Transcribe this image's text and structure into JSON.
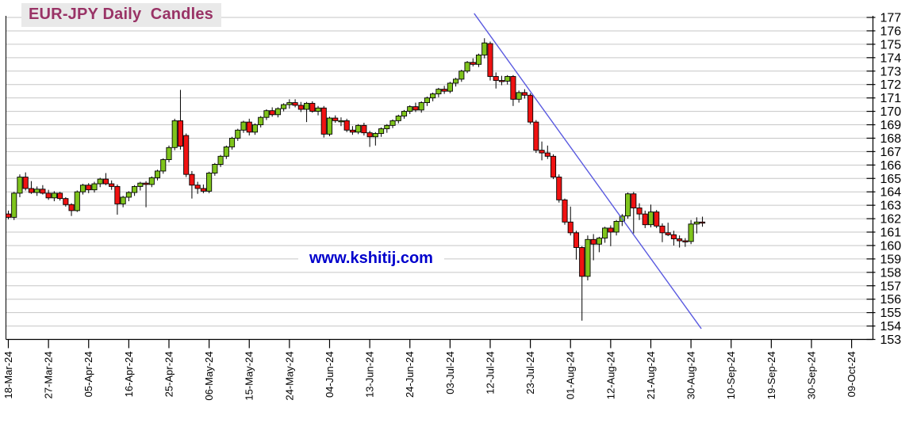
{
  "title": "EUR-JPY Daily  Candles",
  "watermark": "www.kshitij.com",
  "colors": {
    "up_candle": "#7fc41c",
    "down_candle": "#f01212",
    "candle_border": "#000000",
    "wick": "#000000",
    "gridline": "#c6c6c6",
    "axis": "#000000",
    "trendline": "#5a5ae0",
    "title_text": "#993366",
    "title_bg": "#e9e9e9",
    "watermark_text": "#0000cc"
  },
  "chart_data": {
    "type": "candlestick",
    "title": "EUR-JPY Daily Candles",
    "ylim": [
      153,
      177
    ],
    "y_tick_step": 1,
    "grid": "horizontal",
    "legend": "none",
    "x_ticks_every_n_candles": 7,
    "x_tick_labels": [
      "18-Mar-24",
      "27-Mar-24",
      "05-Apr-24",
      "16-Apr-24",
      "25-Apr-24",
      "06-May-24",
      "15-May-24",
      "24-May-24",
      "04-Jun-24",
      "13-Jun-24",
      "24-Jun-24",
      "03-Jul-24",
      "12-Jul-24",
      "23-Jul-24",
      "01-Aug-24",
      "12-Aug-24",
      "21-Aug-24",
      "30-Aug-24",
      "10-Sep-24",
      "19-Sep-24",
      "30-Sep-24",
      "09-Oct-24"
    ],
    "trendline": {
      "from": {
        "index": 81.2,
        "price": 177.3
      },
      "to": {
        "index": 120.8,
        "price": 153.8
      }
    },
    "candles": [
      [
        "18-Mar-24",
        162.35,
        162.6,
        161.95,
        162.1
      ],
      [
        "19-Mar-24",
        162.1,
        164.0,
        161.9,
        163.9
      ],
      [
        "20-Mar-24",
        163.9,
        165.3,
        163.6,
        165.1
      ],
      [
        "21-Mar-24",
        165.1,
        165.45,
        164.1,
        164.25
      ],
      [
        "22-Mar-24",
        164.25,
        164.8,
        163.85,
        163.95
      ],
      [
        "25-Mar-24",
        163.95,
        164.4,
        163.7,
        164.2
      ],
      [
        "26-Mar-24",
        164.2,
        164.5,
        163.8,
        163.9
      ],
      [
        "27-Mar-24",
        163.9,
        164.15,
        163.4,
        163.55
      ],
      [
        "28-Mar-24",
        163.55,
        164.05,
        163.3,
        163.9
      ],
      [
        "29-Mar-24",
        163.9,
        164.0,
        163.35,
        163.5
      ],
      [
        "01-Apr-24",
        163.5,
        163.6,
        162.9,
        163.05
      ],
      [
        "02-Apr-24",
        163.05,
        163.15,
        162.2,
        162.6
      ],
      [
        "03-Apr-24",
        162.6,
        164.1,
        162.5,
        164.0
      ],
      [
        "04-Apr-24",
        164.0,
        164.6,
        163.8,
        164.5
      ],
      [
        "05-Apr-24",
        164.5,
        164.65,
        163.9,
        164.15
      ],
      [
        "08-Apr-24",
        164.15,
        164.75,
        163.95,
        164.6
      ],
      [
        "09-Apr-24",
        164.6,
        165.05,
        164.35,
        164.95
      ],
      [
        "10-Apr-24",
        164.95,
        165.4,
        164.5,
        164.6
      ],
      [
        "11-Apr-24",
        164.6,
        164.85,
        164.15,
        164.4
      ],
      [
        "12-Apr-24",
        164.4,
        164.55,
        162.3,
        163.1
      ],
      [
        "15-Apr-24",
        163.1,
        163.7,
        162.85,
        163.6
      ],
      [
        "16-Apr-24",
        163.6,
        164.05,
        163.3,
        163.95
      ],
      [
        "17-Apr-24",
        163.95,
        164.5,
        163.7,
        164.4
      ],
      [
        "18-Apr-24",
        164.4,
        164.75,
        164.1,
        164.65
      ],
      [
        "19-Apr-24",
        164.65,
        164.8,
        162.85,
        164.55
      ],
      [
        "22-Apr-24",
        164.55,
        165.15,
        164.35,
        165.05
      ],
      [
        "23-Apr-24",
        165.05,
        165.65,
        164.85,
        165.55
      ],
      [
        "24-Apr-24",
        165.55,
        166.5,
        165.35,
        166.4
      ],
      [
        "25-Apr-24",
        166.4,
        167.45,
        166.2,
        167.3
      ],
      [
        "26-Apr-24",
        167.3,
        169.45,
        167.1,
        169.3
      ],
      [
        "29-Apr-24",
        169.3,
        171.6,
        167.15,
        167.4
      ],
      [
        "30-Apr-24",
        168.2,
        168.35,
        165.1,
        165.3
      ],
      [
        "01-May-24",
        165.3,
        165.55,
        163.5,
        164.5
      ],
      [
        "02-May-24",
        164.5,
        164.75,
        163.85,
        164.25
      ],
      [
        "03-May-24",
        164.25,
        164.55,
        163.9,
        164.05
      ],
      [
        "06-May-24",
        164.05,
        165.5,
        163.9,
        165.4
      ],
      [
        "07-May-24",
        165.4,
        166.15,
        165.2,
        166.05
      ],
      [
        "08-May-24",
        166.05,
        166.75,
        165.85,
        166.65
      ],
      [
        "09-May-24",
        166.65,
        167.45,
        166.45,
        167.35
      ],
      [
        "10-May-24",
        167.35,
        168.1,
        167.15,
        168.0
      ],
      [
        "13-May-24",
        168.0,
        168.7,
        167.8,
        168.6
      ],
      [
        "14-May-24",
        168.6,
        169.3,
        168.4,
        169.2
      ],
      [
        "15-May-24",
        169.2,
        169.45,
        168.2,
        168.45
      ],
      [
        "16-May-24",
        168.45,
        169.1,
        168.25,
        169.0
      ],
      [
        "17-May-24",
        169.0,
        169.65,
        168.8,
        169.55
      ],
      [
        "20-May-24",
        169.55,
        170.15,
        169.35,
        170.05
      ],
      [
        "21-May-24",
        170.05,
        170.3,
        169.6,
        169.75
      ],
      [
        "22-May-24",
        169.75,
        170.3,
        169.55,
        170.2
      ],
      [
        "23-May-24",
        170.2,
        170.6,
        170.0,
        170.5
      ],
      [
        "24-May-24",
        170.5,
        170.9,
        170.2,
        170.65
      ],
      [
        "27-May-24",
        170.65,
        170.9,
        170.3,
        170.45
      ],
      [
        "28-May-24",
        170.45,
        170.7,
        169.95,
        170.15
      ],
      [
        "29-May-24",
        170.15,
        170.7,
        169.2,
        170.6
      ],
      [
        "30-May-24",
        170.6,
        170.75,
        169.9,
        170.0
      ],
      [
        "31-May-24",
        170.0,
        170.4,
        169.7,
        170.25
      ],
      [
        "03-Jun-24",
        170.25,
        170.4,
        168.05,
        168.3
      ],
      [
        "04-Jun-24",
        168.3,
        169.6,
        168.15,
        169.5
      ],
      [
        "05-Jun-24",
        169.5,
        169.7,
        169.15,
        169.3
      ],
      [
        "06-Jun-24",
        169.3,
        169.55,
        168.9,
        169.3
      ],
      [
        "07-Jun-24",
        169.3,
        169.45,
        168.45,
        168.6
      ],
      [
        "10-Jun-24",
        168.6,
        168.9,
        168.25,
        168.45
      ],
      [
        "11-Jun-24",
        168.45,
        169.05,
        168.3,
        168.95
      ],
      [
        "12-Jun-24",
        168.95,
        169.15,
        168.2,
        168.4
      ],
      [
        "13-Jun-24",
        168.4,
        168.55,
        167.35,
        168.1
      ],
      [
        "14-Jun-24",
        168.1,
        168.45,
        167.45,
        168.35
      ],
      [
        "17-Jun-24",
        168.35,
        168.8,
        168.1,
        168.7
      ],
      [
        "18-Jun-24",
        168.7,
        169.05,
        168.4,
        168.95
      ],
      [
        "19-Jun-24",
        168.95,
        169.4,
        168.75,
        169.3
      ],
      [
        "20-Jun-24",
        169.3,
        169.75,
        169.1,
        169.65
      ],
      [
        "21-Jun-24",
        169.65,
        170.1,
        169.45,
        170.0
      ],
      [
        "24-Jun-24",
        170.0,
        170.45,
        169.8,
        170.35
      ],
      [
        "25-Jun-24",
        170.35,
        170.65,
        169.95,
        170.1
      ],
      [
        "26-Jun-24",
        170.1,
        170.75,
        169.9,
        170.65
      ],
      [
        "27-Jun-24",
        170.65,
        171.1,
        170.4,
        171.0
      ],
      [
        "28-Jun-24",
        171.0,
        171.4,
        170.75,
        171.3
      ],
      [
        "01-Jul-24",
        171.3,
        171.75,
        171.05,
        171.65
      ],
      [
        "02-Jul-24",
        171.65,
        171.9,
        171.3,
        171.5
      ],
      [
        "03-Jul-24",
        171.5,
        172.2,
        171.35,
        172.1
      ],
      [
        "04-Jul-24",
        172.1,
        172.5,
        171.85,
        172.4
      ],
      [
        "05-Jul-24",
        172.4,
        173.1,
        172.2,
        173.0
      ],
      [
        "08-Jul-24",
        173.0,
        173.75,
        172.85,
        173.65
      ],
      [
        "09-Jul-24",
        173.65,
        173.95,
        173.35,
        173.5
      ],
      [
        "10-Jul-24",
        173.5,
        174.3,
        173.3,
        174.2
      ],
      [
        "11-Jul-24",
        174.2,
        175.45,
        173.95,
        175.1
      ],
      [
        "12-Jul-24",
        175.05,
        175.2,
        172.3,
        172.6
      ],
      [
        "15-Jul-24",
        172.6,
        172.9,
        171.7,
        172.3
      ],
      [
        "16-Jul-24",
        172.3,
        172.65,
        171.95,
        172.25
      ],
      [
        "17-Jul-24",
        172.25,
        172.7,
        172.0,
        172.6
      ],
      [
        "18-Jul-24",
        172.6,
        172.7,
        170.4,
        170.9
      ],
      [
        "19-Jul-24",
        170.9,
        171.55,
        170.65,
        171.4
      ],
      [
        "22-Jul-24",
        171.4,
        171.65,
        170.95,
        171.2
      ],
      [
        "23-Jul-24",
        171.2,
        171.35,
        169.05,
        169.2
      ],
      [
        "24-Jul-24",
        169.2,
        169.35,
        166.9,
        167.1
      ],
      [
        "25-Jul-24",
        167.1,
        167.75,
        166.35,
        166.9
      ],
      [
        "26-Jul-24",
        166.9,
        167.45,
        166.45,
        166.65
      ],
      [
        "29-Jul-24",
        166.65,
        166.8,
        164.95,
        165.1
      ],
      [
        "30-Jul-24",
        165.1,
        165.3,
        163.2,
        163.4
      ],
      [
        "31-Jul-24",
        163.4,
        163.5,
        161.55,
        161.75
      ],
      [
        "01-Aug-24",
        161.75,
        162.9,
        160.75,
        160.95
      ],
      [
        "02-Aug-24",
        160.95,
        161.1,
        158.95,
        159.85
      ],
      [
        "05-Aug-24",
        159.85,
        159.95,
        154.4,
        157.7
      ],
      [
        "06-Aug-24",
        157.7,
        160.75,
        157.4,
        160.45
      ],
      [
        "07-Aug-24",
        160.45,
        160.85,
        158.9,
        160.1
      ],
      [
        "08-Aug-24",
        160.1,
        160.65,
        159.5,
        160.55
      ],
      [
        "09-Aug-24",
        160.55,
        161.4,
        160.2,
        161.3
      ],
      [
        "12-Aug-24",
        161.3,
        161.5,
        159.95,
        161.0
      ],
      [
        "13-Aug-24",
        161.0,
        161.9,
        160.75,
        161.8
      ],
      [
        "14-Aug-24",
        161.8,
        162.35,
        161.45,
        162.2
      ],
      [
        "15-Aug-24",
        162.2,
        163.95,
        162.0,
        163.85
      ],
      [
        "16-Aug-24",
        163.85,
        164.0,
        160.9,
        162.8
      ],
      [
        "19-Aug-24",
        162.8,
        163.15,
        161.9,
        162.35
      ],
      [
        "20-Aug-24",
        162.35,
        162.6,
        161.3,
        161.55
      ],
      [
        "21-Aug-24",
        161.55,
        163.05,
        161.35,
        162.5
      ],
      [
        "22-Aug-24",
        162.5,
        162.65,
        161.3,
        161.45
      ],
      [
        "23-Aug-24",
        161.45,
        161.65,
        160.25,
        160.95
      ],
      [
        "26-Aug-24",
        160.95,
        161.7,
        160.7,
        160.8
      ],
      [
        "27-Aug-24",
        160.8,
        161.1,
        160.0,
        160.5
      ],
      [
        "28-Aug-24",
        160.5,
        160.75,
        159.85,
        160.35
      ],
      [
        "29-Aug-24",
        160.35,
        160.55,
        159.9,
        160.3
      ],
      [
        "30-Aug-24",
        160.3,
        161.9,
        160.1,
        161.6
      ],
      [
        "02-Sep-24",
        161.6,
        162.1,
        160.9,
        161.75
      ],
      [
        "03-Sep-24",
        161.75,
        162.15,
        161.4,
        161.7
      ]
    ]
  }
}
